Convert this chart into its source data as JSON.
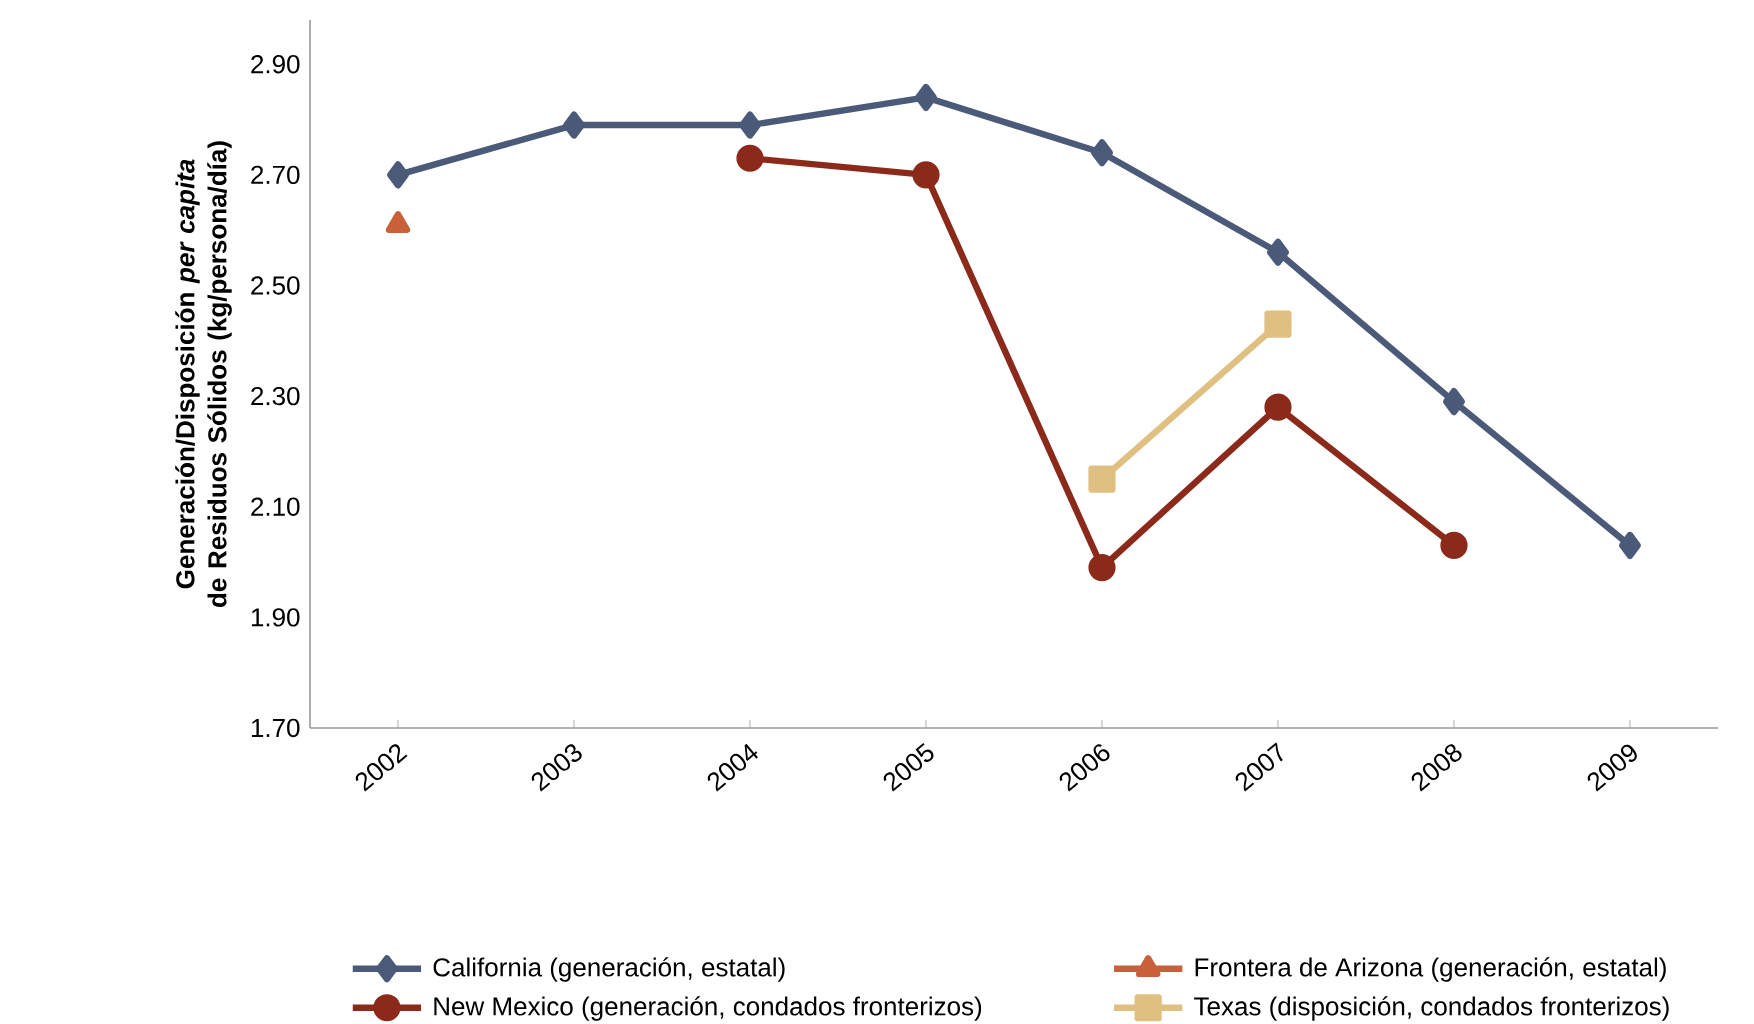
{
  "chart_data": {
    "type": "line",
    "ylabel": "Generación/Disposición *per capita* de Residuos Sólidos (kg/persona/día)",
    "categories": [
      "2002",
      "2003",
      "2004",
      "2005",
      "2006",
      "2007",
      "2008",
      "2009"
    ],
    "series": [
      {
        "name": "California (generación, estatal)",
        "color": "#4a5a78",
        "marker": "diamond",
        "values": [
          2.7,
          2.79,
          2.79,
          2.84,
          2.74,
          2.56,
          2.29,
          2.03
        ]
      },
      {
        "name": "Frontera de Arizona (generación, estatal)",
        "color": "#c8603a",
        "marker": "triangle",
        "values": [
          2.61,
          null,
          null,
          null,
          null,
          null,
          null,
          null
        ]
      },
      {
        "name": "New Mexico (generación, condados fronterizos)",
        "color": "#8b2a1a",
        "marker": "circle",
        "values": [
          null,
          null,
          2.73,
          2.7,
          1.99,
          2.28,
          2.03,
          null
        ]
      },
      {
        "name": "Texas (disposición, condados fronterizos)",
        "color": "#e0c080",
        "marker": "square",
        "values": [
          null,
          null,
          null,
          null,
          2.15,
          2.43,
          null,
          null
        ]
      }
    ],
    "ylim": [
      1.7,
      2.98
    ],
    "yticks": [
      {
        "value": 1.7,
        "label": "1.70"
      },
      {
        "value": 1.9,
        "label": "1.90"
      },
      {
        "value": 2.1,
        "label": "2.10"
      },
      {
        "value": 2.3,
        "label": "2.30"
      },
      {
        "value": 2.5,
        "label": "2.50"
      },
      {
        "value": 2.7,
        "label": "2.70"
      },
      {
        "value": 2.9,
        "label": "2.90"
      }
    ],
    "grid": false,
    "legend": "bottom",
    "line_style": "solid"
  }
}
